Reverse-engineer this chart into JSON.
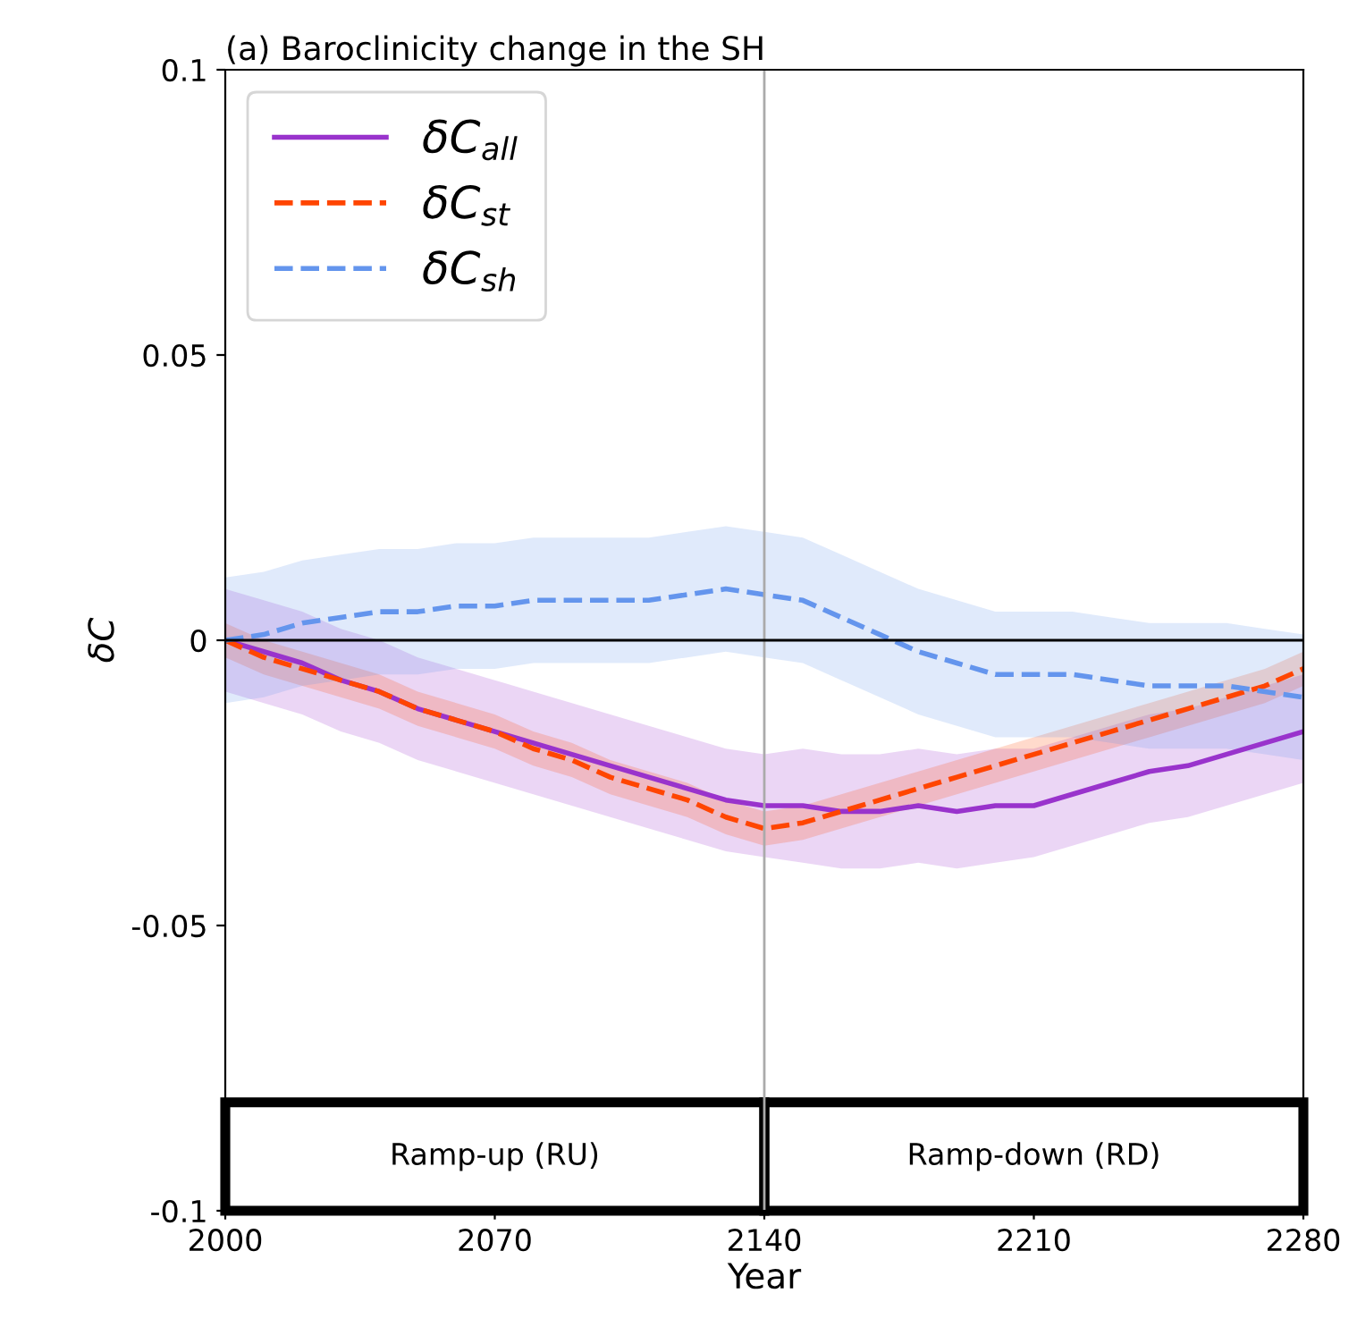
{
  "chart_data": {
    "type": "line",
    "title": "(a) Baroclinicity change in the SH",
    "xlabel": "Year",
    "ylabel": "δC",
    "x": [
      2000,
      2010,
      2020,
      2030,
      2040,
      2050,
      2060,
      2070,
      2080,
      2090,
      2100,
      2110,
      2120,
      2130,
      2140,
      2150,
      2160,
      2170,
      2180,
      2190,
      2200,
      2210,
      2220,
      2230,
      2240,
      2250,
      2260,
      2270,
      2280
    ],
    "series": [
      {
        "name": "δC$_{all}$",
        "color": "#9933cc",
        "line_style": "solid",
        "values": [
          0,
          -0.002,
          -0.004,
          -0.007,
          -0.009,
          -0.012,
          -0.014,
          -0.016,
          -0.018,
          -0.02,
          -0.022,
          -0.024,
          -0.026,
          -0.028,
          -0.029,
          -0.029,
          -0.03,
          -0.03,
          -0.029,
          -0.03,
          -0.029,
          -0.029,
          -0.027,
          -0.025,
          -0.023,
          -0.022,
          -0.02,
          -0.018,
          -0.016
        ],
        "lower": [
          -0.009,
          -0.011,
          -0.013,
          -0.016,
          -0.018,
          -0.021,
          -0.023,
          -0.025,
          -0.027,
          -0.029,
          -0.031,
          -0.033,
          -0.035,
          -0.037,
          -0.038,
          -0.039,
          -0.04,
          -0.04,
          -0.039,
          -0.04,
          -0.039,
          -0.038,
          -0.036,
          -0.034,
          -0.032,
          -0.031,
          -0.029,
          -0.027,
          -0.025
        ],
        "upper": [
          0.009,
          0.007,
          0.005,
          0.002,
          0,
          -0.003,
          -0.005,
          -0.007,
          -0.009,
          -0.011,
          -0.013,
          -0.015,
          -0.017,
          -0.019,
          -0.02,
          -0.019,
          -0.02,
          -0.02,
          -0.019,
          -0.02,
          -0.019,
          -0.019,
          -0.017,
          -0.015,
          -0.013,
          -0.012,
          -0.01,
          -0.008,
          -0.006
        ]
      },
      {
        "name": "δC$_{st}$",
        "color": "#ff4500",
        "line_style": "dashed",
        "values": [
          0,
          -0.003,
          -0.005,
          -0.007,
          -0.009,
          -0.012,
          -0.014,
          -0.016,
          -0.019,
          -0.021,
          -0.024,
          -0.026,
          -0.028,
          -0.031,
          -0.033,
          -0.032,
          -0.03,
          -0.028,
          -0.026,
          -0.024,
          -0.022,
          -0.02,
          -0.018,
          -0.016,
          -0.014,
          -0.012,
          -0.01,
          -0.008,
          -0.005
        ],
        "lower": [
          -0.003,
          -0.006,
          -0.008,
          -0.01,
          -0.012,
          -0.015,
          -0.017,
          -0.019,
          -0.022,
          -0.024,
          -0.027,
          -0.029,
          -0.031,
          -0.034,
          -0.036,
          -0.035,
          -0.033,
          -0.031,
          -0.029,
          -0.027,
          -0.025,
          -0.023,
          -0.021,
          -0.019,
          -0.017,
          -0.015,
          -0.013,
          -0.011,
          -0.008
        ],
        "upper": [
          0.003,
          0,
          -0.002,
          -0.004,
          -0.006,
          -0.009,
          -0.011,
          -0.013,
          -0.016,
          -0.018,
          -0.021,
          -0.023,
          -0.025,
          -0.028,
          -0.03,
          -0.029,
          -0.027,
          -0.025,
          -0.023,
          -0.021,
          -0.019,
          -0.017,
          -0.015,
          -0.013,
          -0.011,
          -0.009,
          -0.007,
          -0.005,
          -0.002
        ]
      },
      {
        "name": "δC$_{sh}$",
        "color": "#6495ed",
        "line_style": "dashed",
        "values": [
          0,
          0.001,
          0.003,
          0.004,
          0.005,
          0.005,
          0.006,
          0.006,
          0.007,
          0.007,
          0.007,
          0.007,
          0.008,
          0.009,
          0.008,
          0.007,
          0.004,
          0.001,
          -0.002,
          -0.004,
          -0.006,
          -0.006,
          -0.006,
          -0.007,
          -0.008,
          -0.008,
          -0.008,
          -0.009,
          -0.01
        ],
        "lower": [
          -0.011,
          -0.01,
          -0.008,
          -0.007,
          -0.006,
          -0.006,
          -0.005,
          -0.005,
          -0.004,
          -0.004,
          -0.004,
          -0.004,
          -0.003,
          -0.002,
          -0.003,
          -0.004,
          -0.007,
          -0.01,
          -0.013,
          -0.015,
          -0.017,
          -0.017,
          -0.017,
          -0.018,
          -0.019,
          -0.019,
          -0.019,
          -0.02,
          -0.021
        ],
        "upper": [
          0.011,
          0.012,
          0.014,
          0.015,
          0.016,
          0.016,
          0.017,
          0.017,
          0.018,
          0.018,
          0.018,
          0.018,
          0.019,
          0.02,
          0.019,
          0.018,
          0.015,
          0.012,
          0.009,
          0.007,
          0.005,
          0.005,
          0.005,
          0.004,
          0.003,
          0.003,
          0.003,
          0.002,
          0.001
        ]
      }
    ],
    "xlim": [
      2000,
      2280
    ],
    "xticks": [
      2000,
      2070,
      2140,
      2210,
      2280
    ],
    "ylim": [
      -0.1,
      0.1
    ],
    "yticks": [
      {
        "value": -0.1,
        "label": "-0.1"
      },
      {
        "value": -0.05,
        "label": "-0.05"
      },
      0,
      0.05,
      0.1
    ],
    "ref_lines": [
      {
        "axis": "x",
        "value": 2140,
        "color": "#aaaaaa"
      },
      {
        "axis": "y",
        "value": 0,
        "color": "#000000"
      }
    ],
    "annotations": [
      "Ramp-up (RU)",
      "Ramp-down (RD)"
    ],
    "legend": "top left",
    "grid": false
  }
}
